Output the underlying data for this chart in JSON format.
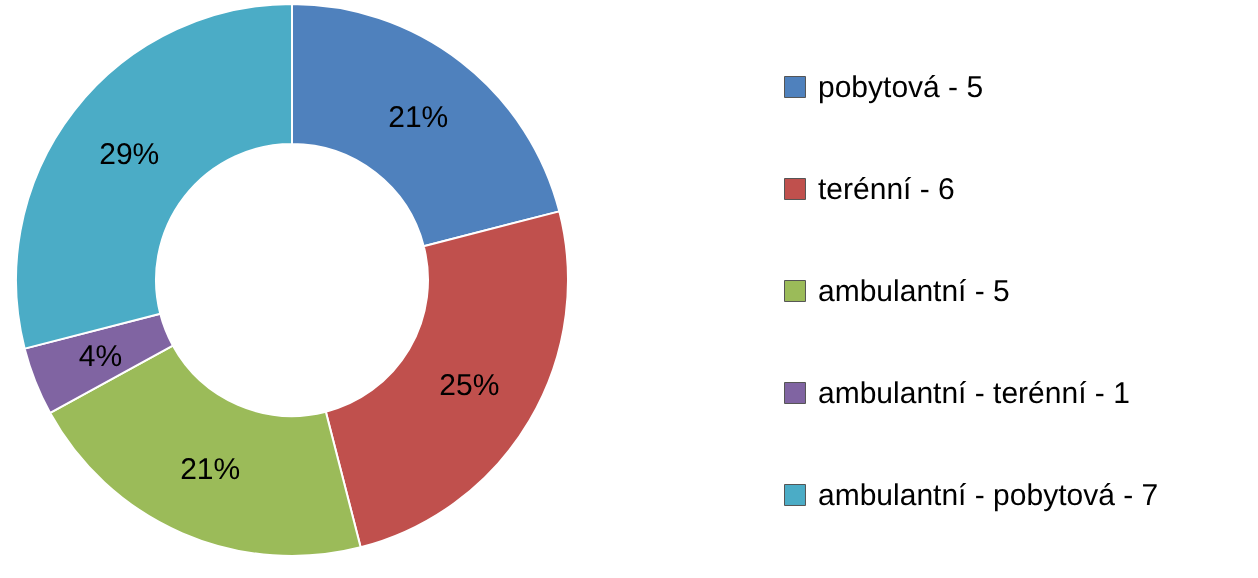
{
  "chart_data": {
    "type": "donut",
    "categories": [
      "pobytová - 5",
      "terénní - 6",
      "ambulantní - 5",
      "ambulantní - terénní - 1",
      "ambulantní - pobytová - 7"
    ],
    "values": [
      21,
      25,
      21,
      4,
      29
    ],
    "colors": [
      "#4f81bd",
      "#c0504d",
      "#9bbb59",
      "#8064a2",
      "#4bacc6"
    ],
    "value_labels": [
      "21%",
      "25%",
      "21%",
      "4%",
      "29%"
    ],
    "legend": "right"
  }
}
